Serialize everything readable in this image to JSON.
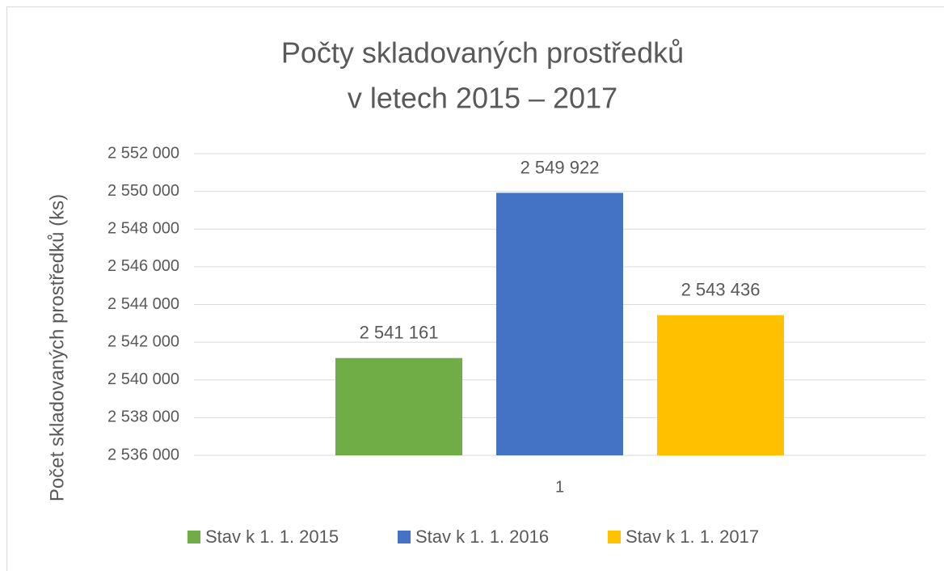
{
  "chart_data": {
    "type": "bar",
    "title": [
      "Počty skladovaných prostředků",
      "v letech 2015 – 2017"
    ],
    "y_label": "Počet skladovaných prostředků (ks)",
    "categories": [
      "1"
    ],
    "series": [
      {
        "name": "Stav k 1. 1. 2015",
        "color": "#70ad47",
        "values": [
          2541161
        ],
        "value_labels": [
          "2 541 161"
        ]
      },
      {
        "name": "Stav k 1. 1. 2016",
        "color": "#4472c4",
        "values": [
          2549922
        ],
        "value_labels": [
          "2 549 922"
        ]
      },
      {
        "name": "Stav k 1. 1. 2017",
        "color": "#ffc000",
        "values": [
          2543436
        ],
        "value_labels": [
          "2 543 436"
        ]
      }
    ],
    "ylim": [
      2536000,
      2552000
    ],
    "yticks": [
      {
        "value": 2536000,
        "label": "2 536 000"
      },
      {
        "value": 2538000,
        "label": "2 538 000"
      },
      {
        "value": 2540000,
        "label": "2 540 000"
      },
      {
        "value": 2542000,
        "label": "2 542 000"
      },
      {
        "value": 2544000,
        "label": "2 544 000"
      },
      {
        "value": 2546000,
        "label": "2 546 000"
      },
      {
        "value": 2548000,
        "label": "2 548 000"
      },
      {
        "value": 2550000,
        "label": "2 550 000"
      },
      {
        "value": 2552000,
        "label": "2 552 000"
      }
    ],
    "grid": true,
    "legend": "bottom"
  }
}
